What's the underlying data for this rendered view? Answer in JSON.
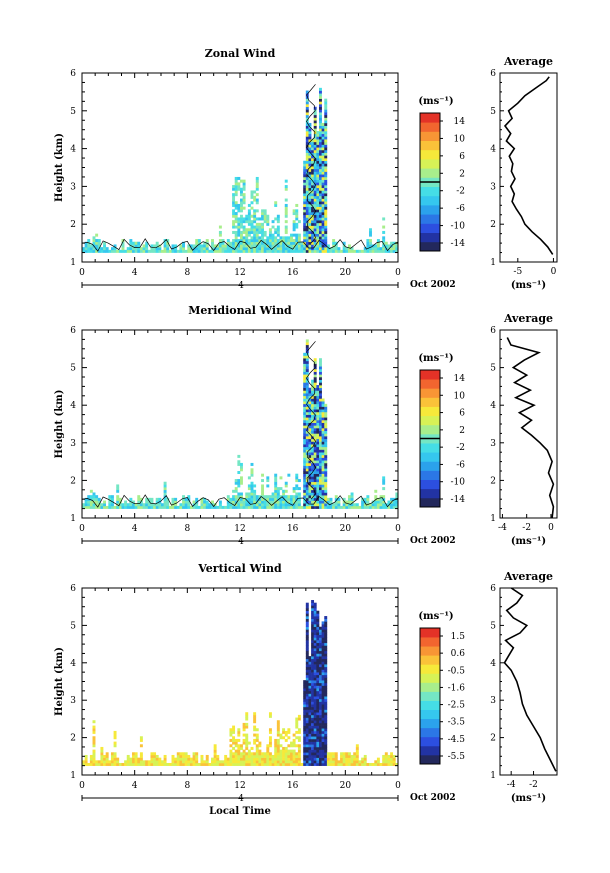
{
  "colors": {
    "colorbar": [
      "#23285c",
      "#2233a3",
      "#2c4fe0",
      "#2b77e6",
      "#2ba2ec",
      "#35c7ee",
      "#45dde6",
      "#74e6c4",
      "#a8ee8c",
      "#d7f256",
      "#f6e93a",
      "#fac239",
      "#f89535",
      "#f2652f",
      "#e43227"
    ],
    "axis": "#000000",
    "contour": "#000000"
  },
  "chart_data": [
    {
      "id": "zonal",
      "type": "heatmap",
      "title": "Zonal Wind",
      "ylabel": "Height (km)",
      "xlabel": "",
      "x_ticks": [
        "0",
        "4",
        "8",
        "12",
        "16",
        "20",
        "0"
      ],
      "y_ticks": [
        "1",
        "2",
        "3",
        "4",
        "5",
        "6"
      ],
      "xlim": [
        0,
        24
      ],
      "ylim": [
        1,
        6
      ],
      "date_label": "4",
      "month_label": "Oct 2002",
      "colorbar": {
        "unit": "(ms⁻¹)",
        "min": -16,
        "max": 16,
        "ticks": [
          "14",
          "10",
          "6",
          "2",
          "-2",
          "-6",
          "-10",
          "-14"
        ],
        "zero_line": true
      },
      "average": {
        "title": "Average",
        "unit": "(ms⁻¹)",
        "xlim": [
          -7.5,
          0.5
        ],
        "x_ticks": [
          "-5",
          "0"
        ],
        "x_tick_values": [
          -5,
          0
        ],
        "profile": [
          [
            1.2,
            -0.1
          ],
          [
            1.4,
            -0.8
          ],
          [
            1.6,
            -1.8
          ],
          [
            1.8,
            -3
          ],
          [
            2.0,
            -4
          ],
          [
            2.2,
            -4.5
          ],
          [
            2.4,
            -5.2
          ],
          [
            2.6,
            -5.8
          ],
          [
            2.8,
            -5.5
          ],
          [
            3.0,
            -6.0
          ],
          [
            3.2,
            -5.4
          ],
          [
            3.4,
            -5.9
          ],
          [
            3.6,
            -5.7
          ],
          [
            3.8,
            -6.2
          ],
          [
            4.0,
            -5.5
          ],
          [
            4.2,
            -6.6
          ],
          [
            4.4,
            -6.0
          ],
          [
            4.6,
            -6.8
          ],
          [
            4.8,
            -5.8
          ],
          [
            5.0,
            -6.3
          ],
          [
            5.2,
            -5.0
          ],
          [
            5.4,
            -4.0
          ],
          [
            5.6,
            -2.5
          ],
          [
            5.8,
            -1.0
          ],
          [
            5.9,
            -0.6
          ]
        ]
      },
      "palette": "wind",
      "seed": 11
    },
    {
      "id": "meridional",
      "type": "heatmap",
      "title": "Meridional Wind",
      "ylabel": "Height (km)",
      "xlabel": "",
      "x_ticks": [
        "0",
        "4",
        "8",
        "12",
        "16",
        "20",
        "0"
      ],
      "y_ticks": [
        "1",
        "2",
        "3",
        "4",
        "5",
        "6"
      ],
      "xlim": [
        0,
        24
      ],
      "ylim": [
        1,
        6
      ],
      "date_label": "4",
      "month_label": "Oct 2002",
      "colorbar": {
        "unit": "(ms⁻¹)",
        "min": -16,
        "max": 16,
        "ticks": [
          "14",
          "10",
          "6",
          "2",
          "-2",
          "-6",
          "-10",
          "-14"
        ],
        "zero_line": true
      },
      "average": {
        "title": "Average",
        "unit": "(ms⁻¹)",
        "xlim": [
          -4.2,
          0.5
        ],
        "x_ticks": [
          "-4",
          "-2",
          "0"
        ],
        "x_tick_values": [
          -4,
          -2,
          0
        ],
        "profile": [
          [
            1.0,
            0.1
          ],
          [
            1.3,
            0.2
          ],
          [
            1.6,
            -0.1
          ],
          [
            1.9,
            0.2
          ],
          [
            2.2,
            -0.2
          ],
          [
            2.5,
            0.1
          ],
          [
            2.8,
            -0.3
          ],
          [
            3.0,
            -0.9
          ],
          [
            3.2,
            -1.6
          ],
          [
            3.4,
            -2.4
          ],
          [
            3.6,
            -1.6
          ],
          [
            3.8,
            -2.6
          ],
          [
            4.0,
            -1.4
          ],
          [
            4.2,
            -2.9
          ],
          [
            4.4,
            -1.7
          ],
          [
            4.6,
            -3.0
          ],
          [
            4.8,
            -2.0
          ],
          [
            5.0,
            -3.1
          ],
          [
            5.2,
            -2.2
          ],
          [
            5.4,
            -1.0
          ],
          [
            5.6,
            -3.3
          ],
          [
            5.8,
            -3.6
          ]
        ]
      },
      "palette": "wind",
      "seed": 29
    },
    {
      "id": "vertical",
      "type": "heatmap",
      "title": "Vertical Wind",
      "ylabel": "Height (km)",
      "xlabel": "Local Time",
      "x_ticks": [
        "0",
        "4",
        "8",
        "12",
        "16",
        "20",
        "0"
      ],
      "y_ticks": [
        "1",
        "2",
        "3",
        "4",
        "5",
        "6"
      ],
      "xlim": [
        0,
        24
      ],
      "ylim": [
        1,
        6
      ],
      "date_label": "4",
      "month_label": "Oct 2002",
      "colorbar": {
        "unit": "(ms⁻¹)",
        "min": -6.2,
        "max": 2.0,
        "ticks": [
          "1.5",
          "0.6",
          "-0.5",
          "-1.6",
          "-2.5",
          "-3.5",
          "-4.5",
          "-5.5"
        ],
        "zero_line": false
      },
      "average": {
        "title": "Average",
        "unit": "(ms⁻¹)",
        "xlim": [
          -5,
          0.1
        ],
        "x_ticks": [
          "-4",
          "-2"
        ],
        "x_tick_values": [
          -4,
          -2
        ],
        "profile": [
          [
            1.1,
            0
          ],
          [
            1.4,
            -0.5
          ],
          [
            1.7,
            -1.0
          ],
          [
            2.0,
            -1.4
          ],
          [
            2.3,
            -2.0
          ],
          [
            2.6,
            -2.6
          ],
          [
            2.9,
            -3.0
          ],
          [
            3.2,
            -3.2
          ],
          [
            3.5,
            -3.5
          ],
          [
            3.8,
            -4.0
          ],
          [
            4.0,
            -4.6
          ],
          [
            4.2,
            -4.2
          ],
          [
            4.4,
            -3.8
          ],
          [
            4.6,
            -4.5
          ],
          [
            4.8,
            -3.2
          ],
          [
            5.0,
            -2.6
          ],
          [
            5.2,
            -3.8
          ],
          [
            5.4,
            -4.4
          ],
          [
            5.6,
            -3.5
          ],
          [
            5.8,
            -3.0
          ],
          [
            6.0,
            -4.0
          ]
        ]
      },
      "palette": "vertical",
      "seed": 47
    }
  ]
}
